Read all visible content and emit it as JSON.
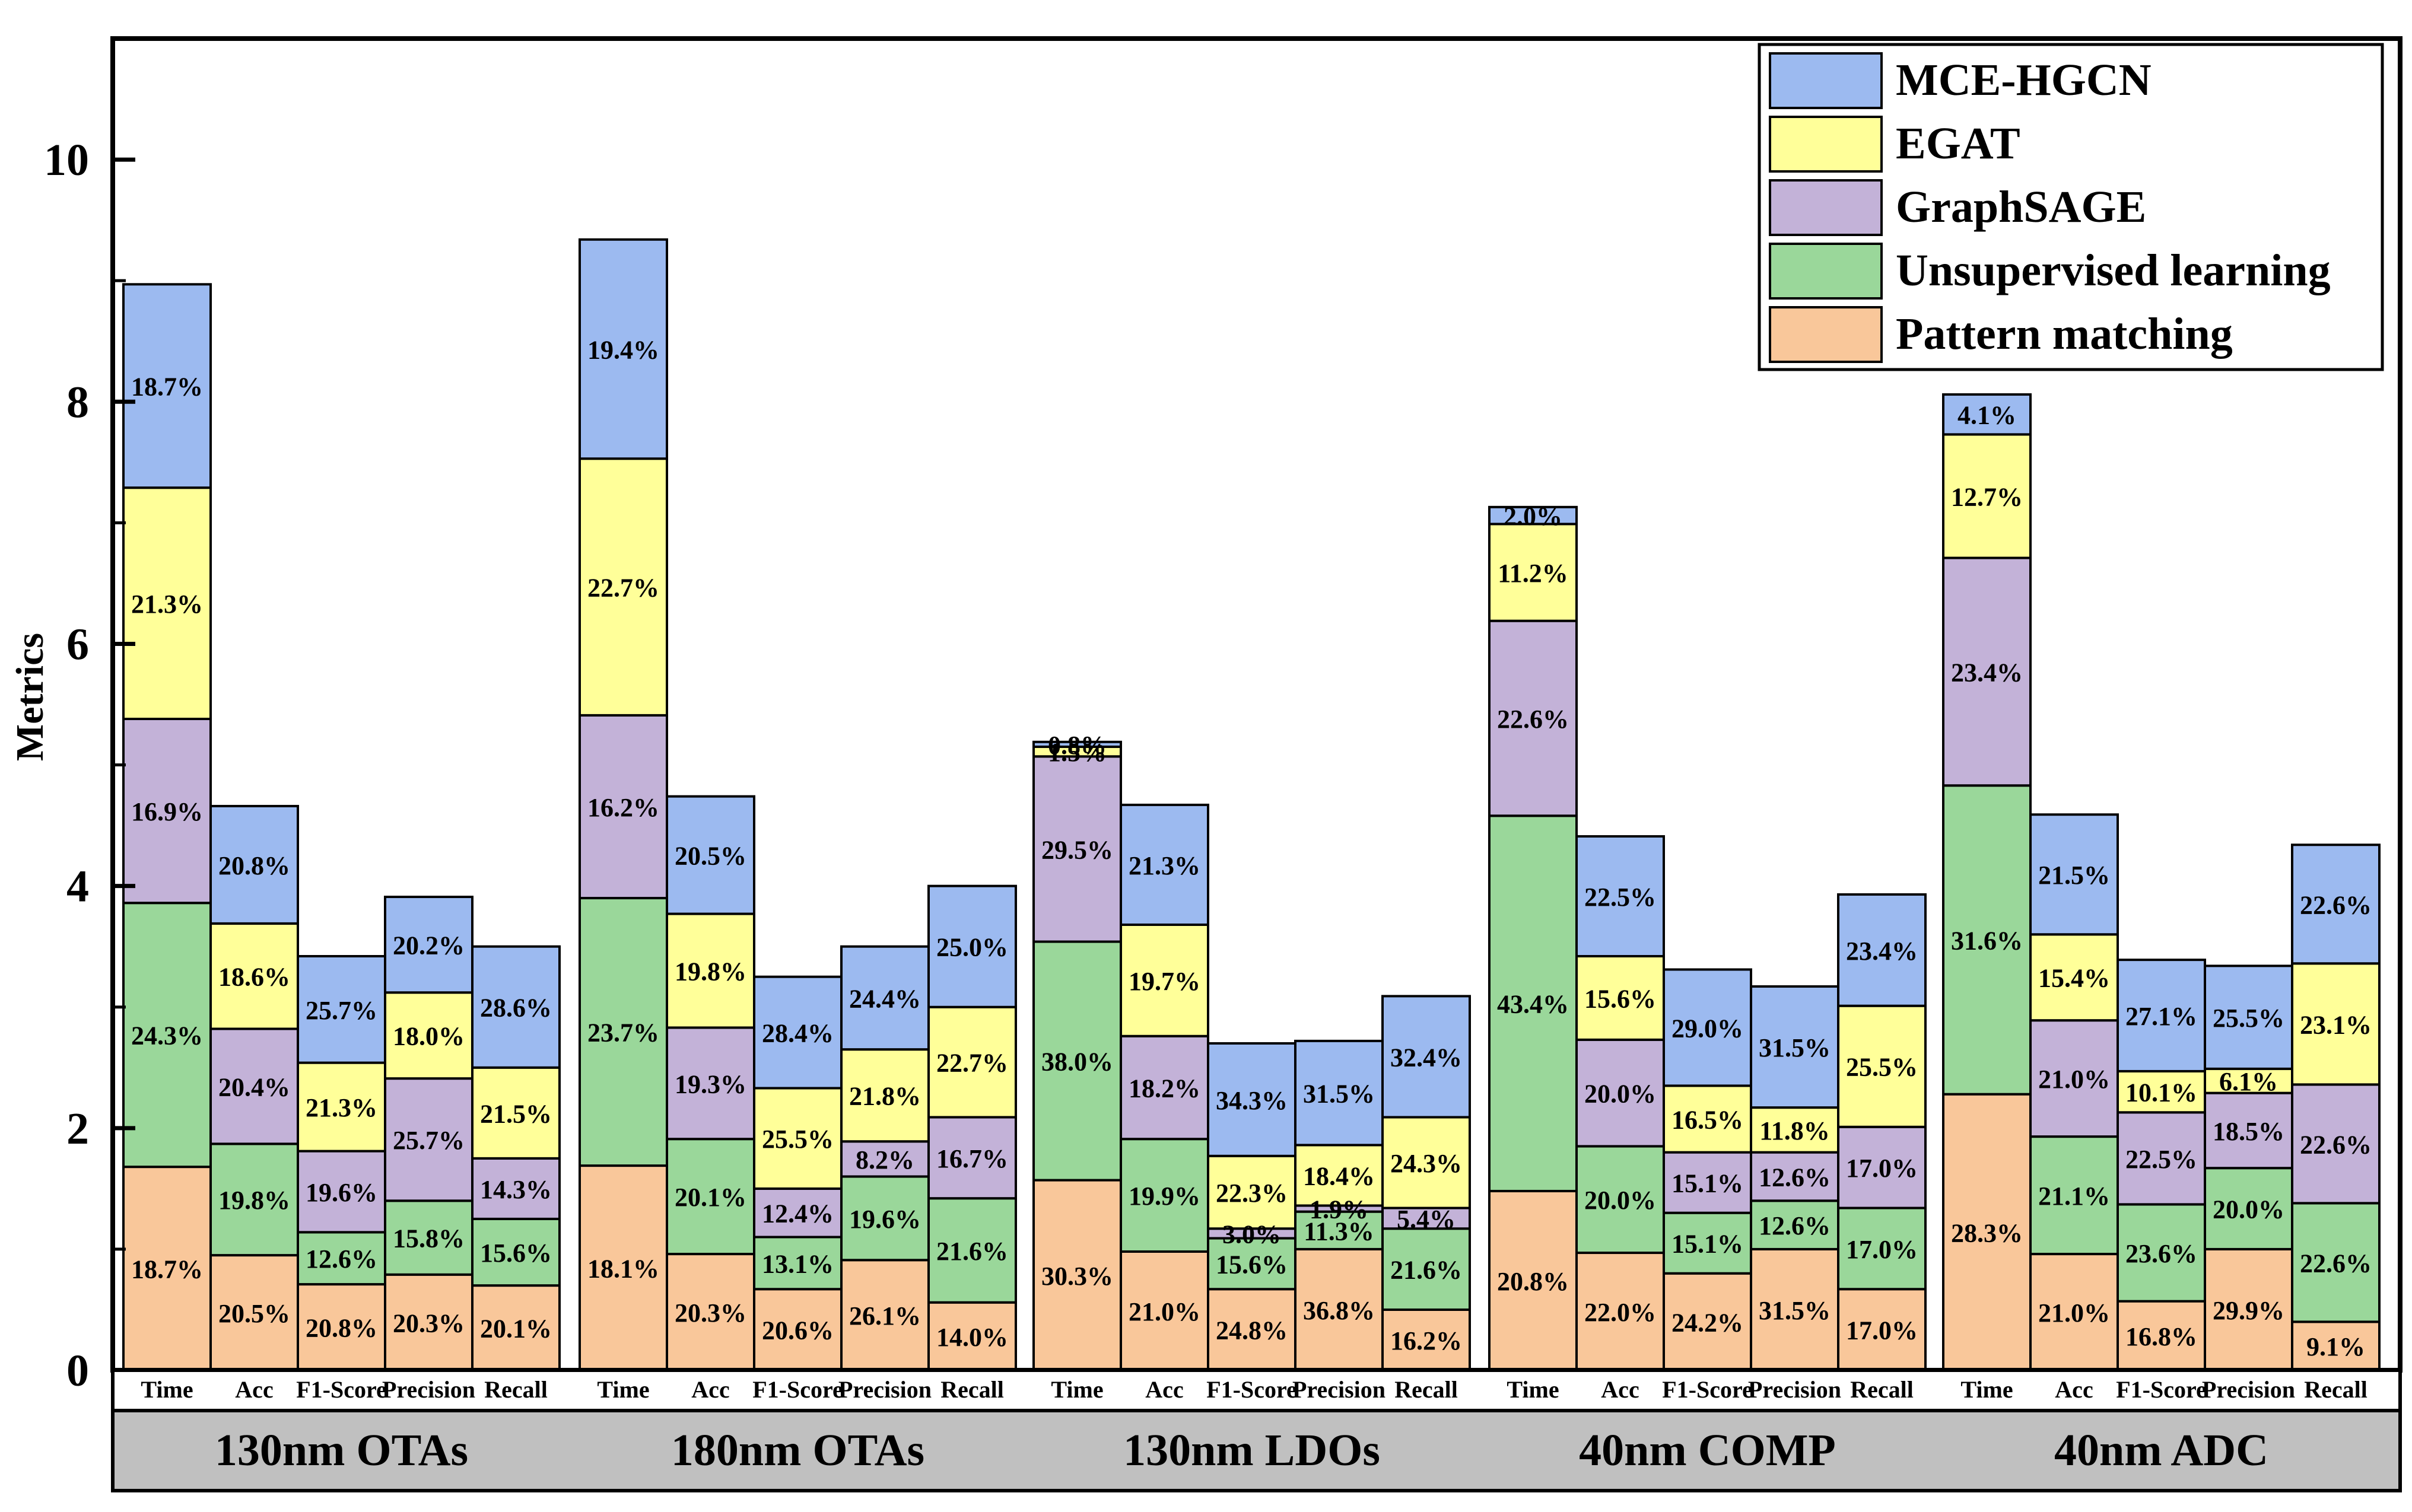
{
  "chart_data": {
    "type": "stacked-bar",
    "ylabel": "Metrics",
    "ylim": [
      0,
      11
    ],
    "yticks": [
      0,
      2,
      4,
      6,
      8,
      10
    ],
    "metrics": [
      "Time",
      "Acc",
      "F1-Score",
      "Precision",
      "Recall"
    ],
    "legend": {
      "position": "top-right",
      "entries": [
        "MCE-HGCN",
        "EGAT",
        "GraphSAGE",
        "Unsupervised learning",
        "Pattern matching"
      ]
    },
    "series_order": [
      "Pattern matching",
      "Unsupervised learning",
      "GraphSAGE",
      "EGAT",
      "MCE-HGCN"
    ],
    "colors": {
      "Pattern matching": "#f9c79a",
      "Unsupervised learning": "#9ad79a",
      "GraphSAGE": "#c3b2d8",
      "EGAT": "#ffff99",
      "MCE-HGCN": "#9cbaf0"
    },
    "groups": [
      {
        "name": "130nm OTAs",
        "bars": [
          {
            "metric": "Time",
            "values": [
              1.68,
              2.18,
              1.52,
              1.91,
              1.68
            ],
            "labels": [
              "18.7%",
              "24.3%",
              "16.9%",
              "21.3%",
              "18.7%"
            ]
          },
          {
            "metric": "Acc",
            "values": [
              0.95,
              0.92,
              0.95,
              0.87,
              0.97
            ],
            "labels": [
              "20.5%",
              "19.8%",
              "20.4%",
              "18.6%",
              "20.8%"
            ]
          },
          {
            "metric": "F1-Score",
            "values": [
              0.71,
              0.43,
              0.67,
              0.73,
              0.88
            ],
            "labels": [
              "20.8%",
              "12.6%",
              "19.6%",
              "21.3%",
              "25.7%"
            ]
          },
          {
            "metric": "Precision",
            "values": [
              0.79,
              0.61,
              1.01,
              0.71,
              0.79
            ],
            "labels": [
              "20.3%",
              "15.8%",
              "25.7%",
              "18.0%",
              "20.2%"
            ]
          },
          {
            "metric": "Recall",
            "values": [
              0.7,
              0.55,
              0.5,
              0.75,
              1.0
            ],
            "labels": [
              "20.1%",
              "15.6%",
              "14.3%",
              "21.5%",
              "28.6%"
            ]
          }
        ]
      },
      {
        "name": "180nm OTAs",
        "bars": [
          {
            "metric": "Time",
            "values": [
              1.69,
              2.21,
              1.51,
              2.12,
              1.81
            ],
            "labels": [
              "18.1%",
              "23.7%",
              "16.2%",
              "22.7%",
              "19.4%"
            ]
          },
          {
            "metric": "Acc",
            "values": [
              0.96,
              0.95,
              0.92,
              0.94,
              0.97
            ],
            "labels": [
              "20.3%",
              "20.1%",
              "19.3%",
              "19.8%",
              "20.5%"
            ]
          },
          {
            "metric": "F1-Score",
            "values": [
              0.67,
              0.43,
              0.4,
              0.83,
              0.92
            ],
            "labels": [
              "20.6%",
              "13.1%",
              "12.4%",
              "25.5%",
              "28.4%"
            ]
          },
          {
            "metric": "Precision",
            "values": [
              0.91,
              0.69,
              0.29,
              0.76,
              0.85
            ],
            "labels": [
              "26.1%",
              "19.6%",
              "8.2%",
              "21.8%",
              "24.4%"
            ]
          },
          {
            "metric": "Recall",
            "values": [
              0.56,
              0.86,
              0.67,
              0.91,
              1.0
            ],
            "labels": [
              "14.0%",
              "21.6%",
              "16.7%",
              "22.7%",
              "25.0%"
            ]
          }
        ]
      },
      {
        "name": "130nm LDOs",
        "bars": [
          {
            "metric": "Time",
            "values": [
              1.57,
              1.97,
              1.53,
              0.08,
              0.04
            ],
            "labels": [
              "30.3%",
              "38.0%",
              "29.5%",
              "1.5%",
              "0.8%"
            ]
          },
          {
            "metric": "Acc",
            "values": [
              0.98,
              0.93,
              0.85,
              0.92,
              0.99
            ],
            "labels": [
              "21.0%",
              "19.9%",
              "18.2%",
              "19.7%",
              "21.3%"
            ]
          },
          {
            "metric": "F1-Score",
            "values": [
              0.67,
              0.42,
              0.08,
              0.6,
              0.93
            ],
            "labels": [
              "24.8%",
              "15.6%",
              "3.0%",
              "22.3%",
              "34.3%"
            ]
          },
          {
            "metric": "Precision",
            "values": [
              1.0,
              0.31,
              0.05,
              0.5,
              0.86
            ],
            "labels": [
              "36.8%",
              "11.3%",
              "1.9%",
              "18.4%",
              "31.5%"
            ]
          },
          {
            "metric": "Recall",
            "values": [
              0.5,
              0.67,
              0.17,
              0.75,
              1.0
            ],
            "labels": [
              "16.2%",
              "21.6%",
              "5.4%",
              "24.3%",
              "32.4%"
            ]
          }
        ]
      },
      {
        "name": "40nm COMP",
        "bars": [
          {
            "metric": "Time",
            "values": [
              1.48,
              3.1,
              1.61,
              0.8,
              0.14
            ],
            "labels": [
              "20.8%",
              "43.4%",
              "22.6%",
              "11.2%",
              "2.0%"
            ]
          },
          {
            "metric": "Acc",
            "values": [
              0.97,
              0.88,
              0.88,
              0.69,
              0.99
            ],
            "labels": [
              "22.0%",
              "20.0%",
              "20.0%",
              "15.6%",
              "22.5%"
            ]
          },
          {
            "metric": "F1-Score",
            "values": [
              0.8,
              0.5,
              0.5,
              0.55,
              0.96
            ],
            "labels": [
              "24.2%",
              "15.1%",
              "15.1%",
              "16.5%",
              "29.0%"
            ]
          },
          {
            "metric": "Precision",
            "values": [
              1.0,
              0.4,
              0.4,
              0.37,
              1.0
            ],
            "labels": [
              "31.5%",
              "12.6%",
              "12.6%",
              "11.8%",
              "31.5%"
            ]
          },
          {
            "metric": "Recall",
            "values": [
              0.67,
              0.67,
              0.67,
              1.0,
              0.92
            ],
            "labels": [
              "17.0%",
              "17.0%",
              "17.0%",
              "25.5%",
              "23.4%"
            ]
          }
        ]
      },
      {
        "name": "40nm ADC",
        "bars": [
          {
            "metric": "Time",
            "values": [
              2.28,
              2.55,
              1.88,
              1.02,
              0.33
            ],
            "labels": [
              "28.3%",
              "31.6%",
              "23.4%",
              "12.7%",
              "4.1%"
            ]
          },
          {
            "metric": "Acc",
            "values": [
              0.96,
              0.97,
              0.96,
              0.71,
              0.99
            ],
            "labels": [
              "21.0%",
              "21.1%",
              "21.0%",
              "15.4%",
              "21.5%"
            ]
          },
          {
            "metric": "F1-Score",
            "values": [
              0.57,
              0.8,
              0.76,
              0.34,
              0.92
            ],
            "labels": [
              "16.8%",
              "23.6%",
              "22.5%",
              "10.1%",
              "27.1%"
            ]
          },
          {
            "metric": "Precision",
            "values": [
              1.0,
              0.67,
              0.62,
              0.2,
              0.85
            ],
            "labels": [
              "29.9%",
              "20.0%",
              "18.5%",
              "6.1%",
              "25.5%"
            ]
          },
          {
            "metric": "Recall",
            "values": [
              0.4,
              0.98,
              0.98,
              1.0,
              0.98
            ],
            "labels": [
              "9.1%",
              "22.6%",
              "22.6%",
              "23.1%",
              "22.6%"
            ]
          }
        ]
      }
    ]
  }
}
